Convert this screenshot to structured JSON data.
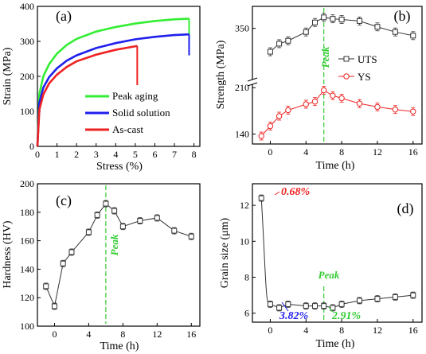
{
  "colors": {
    "green": "#33ee33",
    "blue": "#1f1fee",
    "red": "#ee2222",
    "black": "#000000",
    "peak_green": "#33cc33"
  },
  "chart_data": [
    {
      "panel": "(a)",
      "type": "line",
      "xlabel": "Stress (%)",
      "ylabel": "Strain (MPa)",
      "xlim": [
        0,
        8.3
      ],
      "ylim": [
        0,
        400
      ],
      "xticks": [
        0,
        1,
        2,
        3,
        4,
        5,
        6,
        7,
        8
      ],
      "yticks": [
        0,
        100,
        200,
        300,
        400
      ],
      "legend": "lower-right",
      "series": [
        {
          "name": "Peak aging",
          "color": "#33ee33",
          "fracture_x": 7.75,
          "final_y": 365,
          "drop_to_y": 280,
          "x": [
            0,
            0.1,
            0.3,
            0.6,
            1,
            1.5,
            2,
            3,
            4,
            5,
            6,
            7,
            7.75
          ],
          "y": [
            0,
            150,
            200,
            235,
            265,
            290,
            307,
            328,
            341,
            351,
            358,
            363,
            365
          ]
        },
        {
          "name": "Solid solution",
          "color": "#1f1fee",
          "fracture_x": 7.75,
          "final_y": 320,
          "drop_to_y": 260,
          "x": [
            0,
            0.1,
            0.3,
            0.6,
            1,
            1.5,
            2,
            3,
            4,
            5,
            6,
            7,
            7.75
          ],
          "y": [
            0,
            125,
            168,
            198,
            223,
            245,
            260,
            281,
            295,
            306,
            313,
            318,
            320
          ]
        },
        {
          "name": "As-cast",
          "color": "#ee2222",
          "fracture_x": 5.1,
          "final_y": 287,
          "drop_to_y": 175,
          "x": [
            0,
            0.1,
            0.3,
            0.6,
            1,
            1.5,
            2,
            3,
            4,
            5.1
          ],
          "y": [
            0,
            105,
            148,
            180,
            205,
            227,
            243,
            262,
            276,
            287
          ]
        }
      ]
    },
    {
      "panel": "(b)",
      "type": "line",
      "xlabel": "Time (h)",
      "ylabel": "Strength (MPa)",
      "xlim": [
        -2,
        17
      ],
      "axis_break": [
        210,
        280
      ],
      "yticks": [
        140,
        210,
        350
      ],
      "xticks": [
        0,
        4,
        8,
        12,
        16
      ],
      "annotation": "Peak",
      "peak_x": 6,
      "legend": "right",
      "series": [
        {
          "name": "UTS",
          "color": "#333333",
          "marker": "square",
          "x": [
            0,
            1,
            2,
            4,
            5,
            6,
            7,
            8,
            10,
            12,
            14,
            16
          ],
          "y": [
            318,
            329,
            333,
            345,
            358,
            365,
            363,
            362,
            360,
            352,
            345,
            340
          ]
        },
        {
          "name": "YS",
          "color": "#ee2222",
          "marker": "circle",
          "x": [
            -1,
            0,
            1,
            2,
            4,
            5,
            6,
            7,
            8,
            10,
            12,
            14,
            16
          ],
          "y": [
            137,
            152,
            167,
            176,
            185,
            189,
            206,
            198,
            194,
            186,
            181,
            177,
            174
          ]
        }
      ]
    },
    {
      "panel": "(c)",
      "type": "line",
      "xlabel": "Time (h)",
      "ylabel": "Hardness (HV)",
      "xlim": [
        -2,
        17
      ],
      "ylim": [
        100,
        200
      ],
      "yticks": [
        100,
        120,
        140,
        160,
        180,
        200
      ],
      "xticks": [
        0,
        4,
        8,
        12,
        16
      ],
      "annotation": "Peak",
      "peak_x": 6,
      "series": [
        {
          "name": "Hardness",
          "color": "#333333",
          "marker": "square",
          "x": [
            -1,
            0,
            1,
            2,
            4,
            5,
            6,
            7,
            8,
            10,
            12,
            14,
            16
          ],
          "y": [
            128,
            114,
            144,
            152,
            166,
            178,
            186,
            181,
            170,
            174,
            176,
            167,
            163
          ]
        }
      ]
    },
    {
      "panel": "(d)",
      "type": "line",
      "xlabel": "Time (h)",
      "ylabel": "Grain size (μm)",
      "xlim": [
        -2,
        17
      ],
      "ylim": [
        5.5,
        13.2
      ],
      "yticks": [
        6,
        8,
        10,
        12
      ],
      "xticks": [
        0,
        4,
        8,
        12,
        16
      ],
      "annotation": "Peak",
      "peak_x": 6,
      "labels": [
        {
          "text": "0.68%",
          "color": "#ee2222"
        },
        {
          "text": "3.82%",
          "color": "#1f1fee"
        },
        {
          "text": "2.91%",
          "color": "#33cc33"
        }
      ],
      "series": [
        {
          "name": "Grain size",
          "color": "#333333",
          "marker": "square",
          "x": [
            -1,
            0,
            1,
            2,
            4,
            5,
            6,
            7,
            8,
            10,
            12,
            14,
            16
          ],
          "y": [
            12.4,
            6.5,
            6.3,
            6.5,
            6.4,
            6.4,
            6.4,
            6.3,
            6.5,
            6.7,
            6.8,
            6.9,
            7.0
          ]
        }
      ]
    }
  ]
}
